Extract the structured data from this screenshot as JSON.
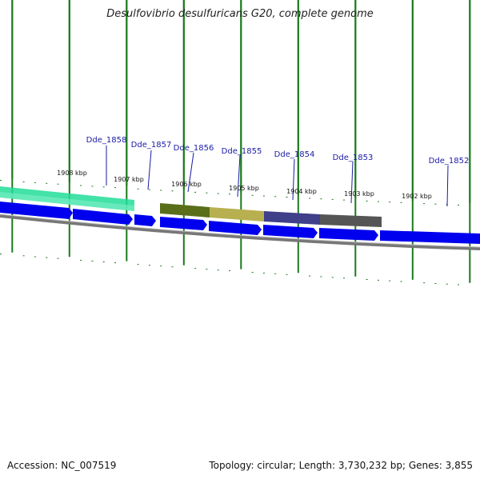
{
  "title": "Desulfovibrio desulfuricans G20, complete genome",
  "footer": {
    "accession": "Accession: NC_007519",
    "summary": "Topology: circular; Length: 3,730,232 bp; Genes: 3,855"
  },
  "colors": {
    "forward_gene": "#0000ee",
    "backbone": "#888888",
    "tick": "#1a7a1a",
    "label": "#1a1aa6",
    "highlight_teal": "#22dd99",
    "region_olive": "#5a6e1a",
    "region_khaki": "#b8b050",
    "region_slate": "#3f3f8a",
    "region_grey": "#555555"
  },
  "kbp_ticks": [
    {
      "kbp": 1908,
      "label": "1908 kbp"
    },
    {
      "kbp": 1907,
      "label": "1907 kbp"
    },
    {
      "kbp": 1906,
      "label": "1906 kbp"
    },
    {
      "kbp": 1905,
      "label": "1905 kbp"
    },
    {
      "kbp": 1904,
      "label": "1904 kbp"
    },
    {
      "kbp": 1903,
      "label": "1903 kbp"
    },
    {
      "kbp": 1902,
      "label": "1902 kbp"
    }
  ],
  "gene_labels": [
    {
      "id": "Dde_1858",
      "label": "Dde_1858"
    },
    {
      "id": "Dde_1857",
      "label": "Dde_1857"
    },
    {
      "id": "Dde_1856",
      "label": "Dde_1856"
    },
    {
      "id": "Dde_1855",
      "label": "Dde_1855"
    },
    {
      "id": "Dde_1854",
      "label": "Dde_1854"
    },
    {
      "id": "Dde_1853",
      "label": "Dde_1853"
    },
    {
      "id": "Dde_1852",
      "label": "Dde_1852"
    }
  ]
}
